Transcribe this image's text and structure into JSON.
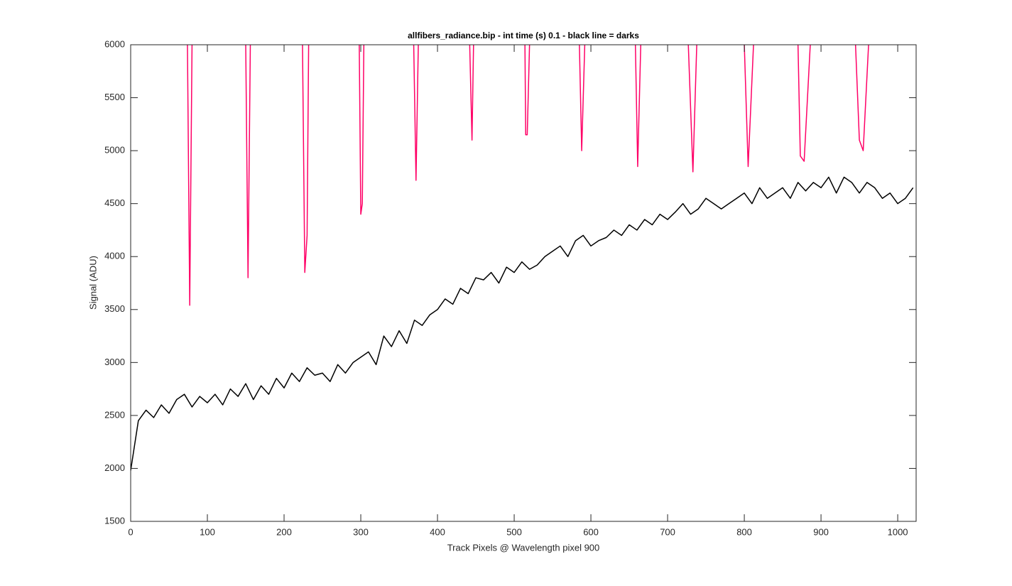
{
  "chart_data": {
    "type": "line",
    "title": "allfibers_radiance.bip - int time (s) 0.1 - black line = darks",
    "xlabel": "Track Pixels @ Wavelength pixel 900",
    "ylabel": "Signal (ADU)",
    "xlim": [
      0,
      1024
    ],
    "ylim": [
      1500,
      6000
    ],
    "xticks": [
      0,
      100,
      200,
      300,
      400,
      500,
      600,
      700,
      800,
      900,
      1000
    ],
    "yticks": [
      1500,
      2000,
      2500,
      3000,
      3500,
      4000,
      4500,
      5000,
      5500,
      6000
    ],
    "grid": false,
    "series": [
      {
        "color": "#ff0066",
        "x": [
          74,
          77,
          80,
          null,
          150,
          153,
          156,
          null,
          224,
          227,
          230,
          232,
          null,
          298,
          300,
          302,
          304,
          null,
          369,
          372,
          375,
          null,
          442,
          445,
          447,
          null,
          514,
          515,
          517,
          520,
          null,
          585,
          588,
          592,
          null,
          658,
          661,
          665,
          null,
          727,
          733,
          738,
          null,
          800,
          805,
          812,
          null,
          870,
          873,
          878,
          886,
          null,
          945,
          950,
          955,
          962
        ],
        "values": [
          6000,
          3540,
          6000,
          null,
          6000,
          3800,
          6000,
          null,
          6000,
          3850,
          4200,
          6000,
          null,
          6000,
          4400,
          4500,
          6000,
          null,
          6000,
          4720,
          6000,
          null,
          6000,
          5100,
          6000,
          null,
          6000,
          5150,
          5150,
          6000,
          null,
          6000,
          5000,
          6000,
          null,
          6000,
          4850,
          6000,
          null,
          6000,
          4800,
          6000,
          null,
          6000,
          4850,
          6000,
          null,
          6000,
          4950,
          4900,
          6000,
          null,
          6000,
          5100,
          5000,
          6000
        ]
      },
      {
        "color": "#000000",
        "x": [
          0,
          10,
          20,
          30,
          40,
          50,
          60,
          70,
          80,
          90,
          100,
          110,
          120,
          130,
          140,
          150,
          160,
          170,
          180,
          190,
          200,
          210,
          220,
          230,
          240,
          250,
          260,
          270,
          280,
          290,
          300,
          310,
          320,
          330,
          340,
          350,
          360,
          370,
          380,
          390,
          400,
          410,
          420,
          430,
          440,
          450,
          460,
          470,
          480,
          490,
          500,
          510,
          520,
          530,
          540,
          550,
          560,
          570,
          580,
          590,
          600,
          610,
          620,
          630,
          640,
          650,
          660,
          670,
          680,
          690,
          700,
          710,
          720,
          730,
          740,
          750,
          760,
          770,
          780,
          790,
          800,
          810,
          820,
          830,
          840,
          850,
          860,
          870,
          880,
          890,
          900,
          910,
          920,
          930,
          940,
          950,
          960,
          970,
          980,
          990,
          1000,
          1010,
          1020
        ],
        "values": [
          1980,
          2450,
          2550,
          2480,
          2600,
          2520,
          2650,
          2700,
          2580,
          2680,
          2620,
          2700,
          2600,
          2750,
          2680,
          2800,
          2650,
          2780,
          2700,
          2850,
          2760,
          2900,
          2820,
          2950,
          2880,
          2900,
          2820,
          2980,
          2900,
          3000,
          3050,
          3100,
          2980,
          3250,
          3150,
          3300,
          3180,
          3400,
          3350,
          3450,
          3500,
          3600,
          3550,
          3700,
          3650,
          3800,
          3780,
          3850,
          3750,
          3900,
          3850,
          3950,
          3880,
          3920,
          4000,
          4050,
          4100,
          4000,
          4150,
          4200,
          4100,
          4150,
          4180,
          4250,
          4200,
          4300,
          4250,
          4350,
          4300,
          4400,
          4350,
          4420,
          4500,
          4400,
          4450,
          4550,
          4500,
          4450,
          4500,
          4550,
          4600,
          4500,
          4650,
          4550,
          4600,
          4650,
          4550,
          4700,
          4620,
          4700,
          4650,
          4750,
          4600,
          4750,
          4700,
          4600,
          4700,
          4650,
          4550,
          4600,
          4500,
          4550,
          4650
        ]
      }
    ]
  }
}
